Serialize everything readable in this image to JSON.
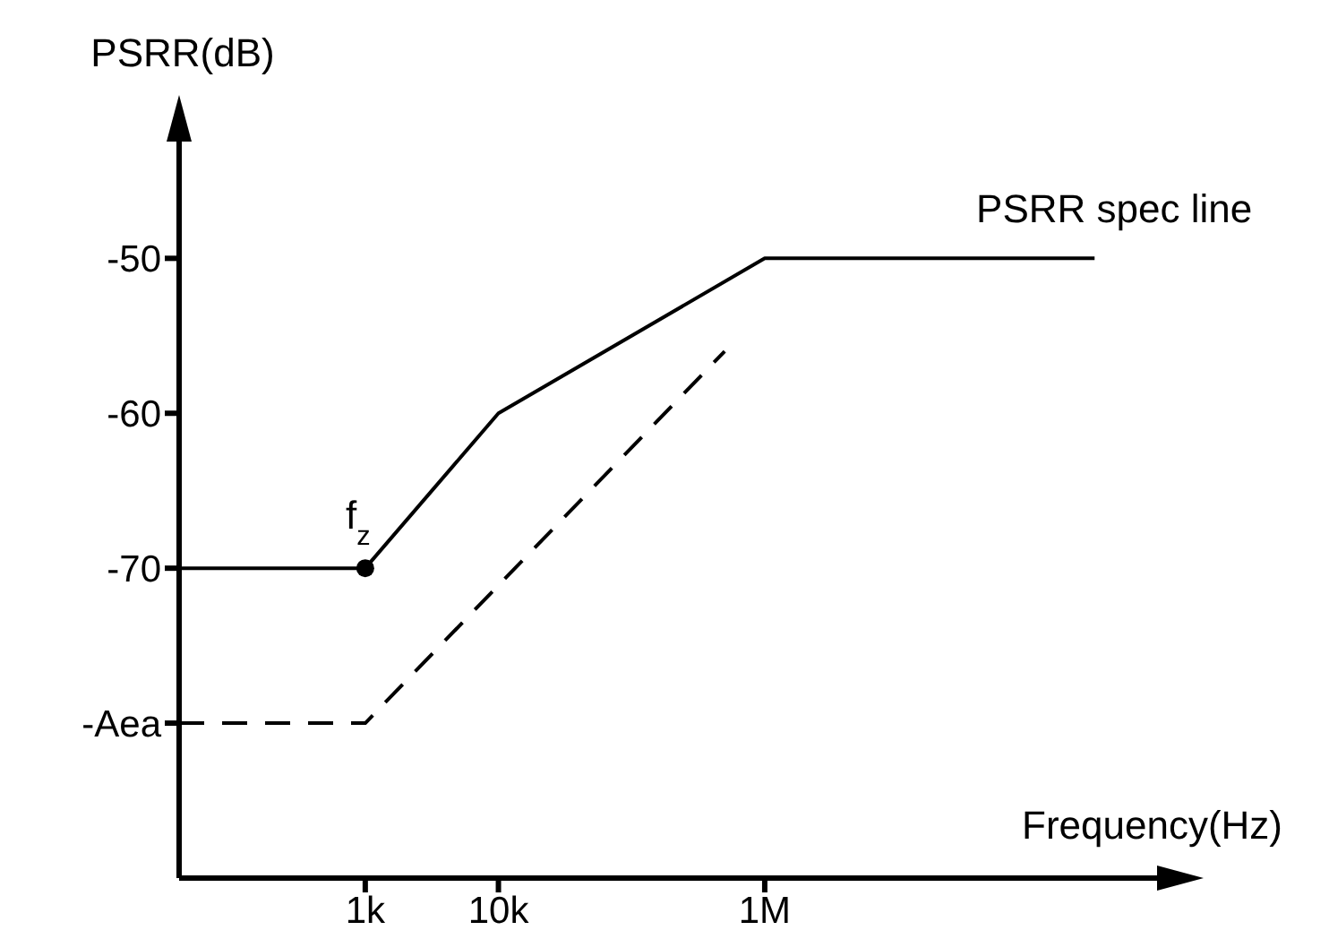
{
  "chart_data": {
    "type": "line",
    "xlabel": "Frequency(Hz)",
    "ylabel": "PSRR(dB)",
    "log": "x",
    "xlim": [
      40,
      1000000000
    ],
    "xticks": [
      {
        "value": 1000,
        "label": "1k"
      },
      {
        "value": 10000,
        "label": "10k"
      },
      {
        "value": 1000000,
        "label": "1M"
      }
    ],
    "ylim": [
      -90,
      -42
    ],
    "yticks": [
      -50,
      -60,
      -70,
      {
        "value": -80,
        "label": "-Aea"
      }
    ],
    "grid": false,
    "legend": false,
    "marker": "none",
    "series": [
      {
        "name": "PSRR spec line",
        "color": "#000000",
        "line_style": "solid",
        "x": [
          40,
          1000,
          10000,
          1000000,
          300000000
        ],
        "values": [
          -70,
          -70,
          -60,
          -50,
          -50
        ]
      },
      {
        "color": "#000000",
        "line_style": "dashed",
        "x": [
          40,
          1000,
          500000
        ],
        "values": [
          -80,
          -80,
          -56
        ]
      },
      {
        "type": "scatter",
        "color": "#000000",
        "marker": "circle",
        "x": [
          1000
        ],
        "values": [
          -70
        ]
      }
    ],
    "annotations": [
      {
        "text": "f$_{z}$",
        "x": 1000,
        "y": -70
      }
    ]
  }
}
